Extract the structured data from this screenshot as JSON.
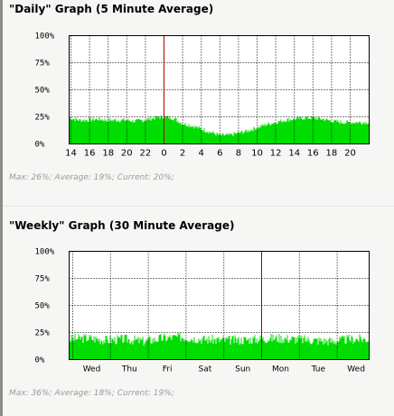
{
  "colors": {
    "fill": "#00dd00",
    "edge": "#00aa00",
    "marker": "#b00000",
    "grid": "#000000",
    "plot_bg": "#ffffff"
  },
  "chart_data": [
    {
      "type": "area",
      "title": "\"Daily\" Graph (5 Minute Average)",
      "ylim": [
        0,
        100
      ],
      "yticks": [
        "100%",
        "75%",
        "50%",
        "25%",
        "0%"
      ],
      "x_tick_labels": [
        "14",
        "16",
        "18",
        "20",
        "22",
        "0",
        "2",
        "4",
        "6",
        "8",
        "10",
        "12",
        "14",
        "16",
        "18",
        "20"
      ],
      "grid": "dotted",
      "series": [
        {
          "x": [
            14,
            15,
            16,
            17,
            18,
            19,
            20,
            21,
            22,
            23,
            24,
            25,
            26,
            27,
            28,
            29,
            30,
            31,
            32,
            33,
            34,
            35,
            36,
            37,
            38,
            39,
            40,
            41,
            42,
            43,
            44,
            45,
            46
          ],
          "values": [
            24,
            22,
            22,
            23,
            22,
            22,
            22,
            21,
            22,
            24,
            25,
            24,
            19,
            17,
            14,
            11,
            8,
            8,
            10,
            12,
            15,
            18,
            20,
            22,
            23,
            24,
            24,
            23,
            21,
            20,
            20,
            20,
            20
          ]
        }
      ],
      "stats": {
        "max": "Max: 26%;",
        "avg": "Average: 19%;",
        "cur": "Current: 20%;"
      }
    },
    {
      "type": "area",
      "title": "\"Weekly\" Graph (30 Minute Average)",
      "ylim": [
        0,
        100
      ],
      "yticks": [
        "100%",
        "75%",
        "50%",
        "25%",
        "0%"
      ],
      "x_tick_labels": [
        "Wed",
        "Thu",
        "Fri",
        "Sat",
        "Sun",
        "Mon",
        "Tue",
        "Wed"
      ],
      "grid": "dotted",
      "series": [
        {
          "x": [
            0,
            0.5,
            1,
            1.5,
            2,
            2.5,
            3,
            3.5,
            4,
            4.5,
            5,
            5.5,
            6,
            6.5,
            7,
            7.5,
            8
          ],
          "values": [
            19,
            20,
            18,
            19,
            17,
            20,
            21,
            19,
            18,
            18,
            19,
            20,
            19,
            18,
            17,
            19,
            19
          ]
        }
      ],
      "stats": {
        "max": "Max: 36%;",
        "avg": "Average: 18%;",
        "cur": "Current: 19%;"
      }
    }
  ]
}
